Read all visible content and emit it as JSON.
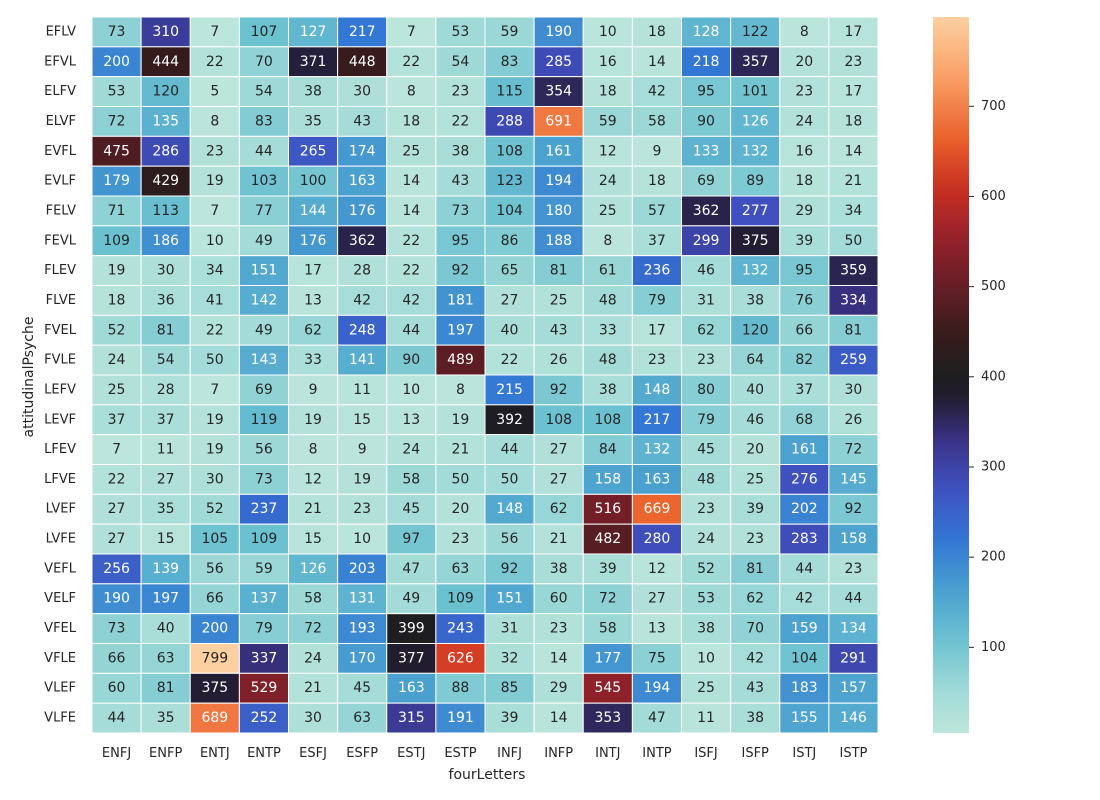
{
  "chart_data": {
    "type": "heatmap",
    "xlabel": "fourLetters",
    "ylabel": "attitudinalPsyche",
    "x_categories": [
      "ENFJ",
      "ENFP",
      "ENTJ",
      "ENTP",
      "ESFJ",
      "ESFP",
      "ESTJ",
      "ESTP",
      "INFJ",
      "INFP",
      "INTJ",
      "INTP",
      "ISFJ",
      "ISFP",
      "ISTJ",
      "ISTP"
    ],
    "y_categories": [
      "EFLV",
      "EFVL",
      "ELFV",
      "ELVF",
      "EVFL",
      "EVLF",
      "FELV",
      "FEVL",
      "FLEV",
      "FLVE",
      "FVEL",
      "FVLE",
      "LEFV",
      "LEVF",
      "LFEV",
      "LFVE",
      "LVEF",
      "LVFE",
      "VEFL",
      "VELF",
      "VFEL",
      "VFLE",
      "VLEF",
      "VLFE"
    ],
    "values": [
      [
        73,
        310,
        7,
        107,
        127,
        217,
        7,
        53,
        59,
        190,
        10,
        18,
        128,
        122,
        8,
        17
      ],
      [
        200,
        444,
        22,
        70,
        371,
        448,
        22,
        54,
        83,
        285,
        16,
        14,
        218,
        357,
        20,
        23
      ],
      [
        53,
        120,
        5,
        54,
        38,
        30,
        8,
        23,
        115,
        354,
        18,
        42,
        95,
        101,
        23,
        17
      ],
      [
        72,
        135,
        8,
        83,
        35,
        43,
        18,
        22,
        288,
        691,
        59,
        58,
        90,
        126,
        24,
        18
      ],
      [
        475,
        286,
        23,
        44,
        265,
        174,
        25,
        38,
        108,
        161,
        12,
        9,
        133,
        132,
        16,
        14
      ],
      [
        179,
        429,
        19,
        103,
        100,
        163,
        14,
        43,
        123,
        194,
        24,
        18,
        69,
        89,
        18,
        21
      ],
      [
        71,
        113,
        7,
        77,
        144,
        176,
        14,
        73,
        104,
        180,
        25,
        57,
        362,
        277,
        29,
        34
      ],
      [
        109,
        186,
        10,
        49,
        176,
        362,
        22,
        95,
        86,
        188,
        8,
        37,
        299,
        375,
        39,
        50
      ],
      [
        19,
        30,
        34,
        151,
        17,
        28,
        22,
        92,
        65,
        81,
        61,
        236,
        46,
        132,
        95,
        359
      ],
      [
        18,
        36,
        41,
        142,
        13,
        42,
        42,
        181,
        27,
        25,
        48,
        79,
        31,
        38,
        76,
        334
      ],
      [
        52,
        81,
        22,
        49,
        62,
        248,
        44,
        197,
        40,
        43,
        33,
        17,
        62,
        120,
        66,
        81
      ],
      [
        24,
        54,
        50,
        143,
        33,
        141,
        90,
        489,
        22,
        26,
        48,
        23,
        23,
        64,
        82,
        259
      ],
      [
        25,
        28,
        7,
        69,
        9,
        11,
        10,
        8,
        215,
        92,
        38,
        148,
        80,
        40,
        37,
        30
      ],
      [
        37,
        37,
        19,
        119,
        19,
        15,
        13,
        19,
        392,
        108,
        108,
        217,
        79,
        46,
        68,
        26
      ],
      [
        7,
        11,
        19,
        56,
        8,
        9,
        24,
        21,
        44,
        27,
        84,
        132,
        45,
        20,
        161,
        72
      ],
      [
        22,
        27,
        30,
        73,
        12,
        19,
        58,
        50,
        50,
        27,
        158,
        163,
        48,
        25,
        276,
        145
      ],
      [
        27,
        35,
        52,
        237,
        21,
        23,
        45,
        20,
        148,
        62,
        516,
        669,
        23,
        39,
        202,
        92
      ],
      [
        27,
        15,
        105,
        109,
        15,
        10,
        97,
        23,
        56,
        21,
        482,
        280,
        24,
        23,
        283,
        158
      ],
      [
        256,
        139,
        56,
        59,
        126,
        203,
        47,
        63,
        92,
        38,
        39,
        12,
        52,
        81,
        44,
        23
      ],
      [
        190,
        197,
        66,
        137,
        58,
        131,
        49,
        109,
        151,
        60,
        72,
        27,
        53,
        62,
        42,
        44
      ],
      [
        73,
        40,
        200,
        79,
        72,
        193,
        399,
        243,
        31,
        23,
        58,
        13,
        38,
        70,
        159,
        134
      ],
      [
        66,
        63,
        799,
        337,
        24,
        170,
        377,
        626,
        32,
        14,
        177,
        75,
        10,
        42,
        104,
        291
      ],
      [
        60,
        81,
        375,
        529,
        21,
        45,
        163,
        88,
        85,
        29,
        545,
        194,
        25,
        43,
        183,
        157
      ],
      [
        44,
        35,
        689,
        252,
        30,
        63,
        315,
        191,
        39,
        14,
        353,
        47,
        11,
        38,
        155,
        146
      ]
    ],
    "colorbar": {
      "colormap": "icefire",
      "vmin": 5,
      "vmax": 799,
      "ticks": [
        100,
        200,
        300,
        400,
        500,
        600,
        700
      ]
    },
    "cell_annotations": true,
    "grid_lines_color": "#ffffff"
  }
}
